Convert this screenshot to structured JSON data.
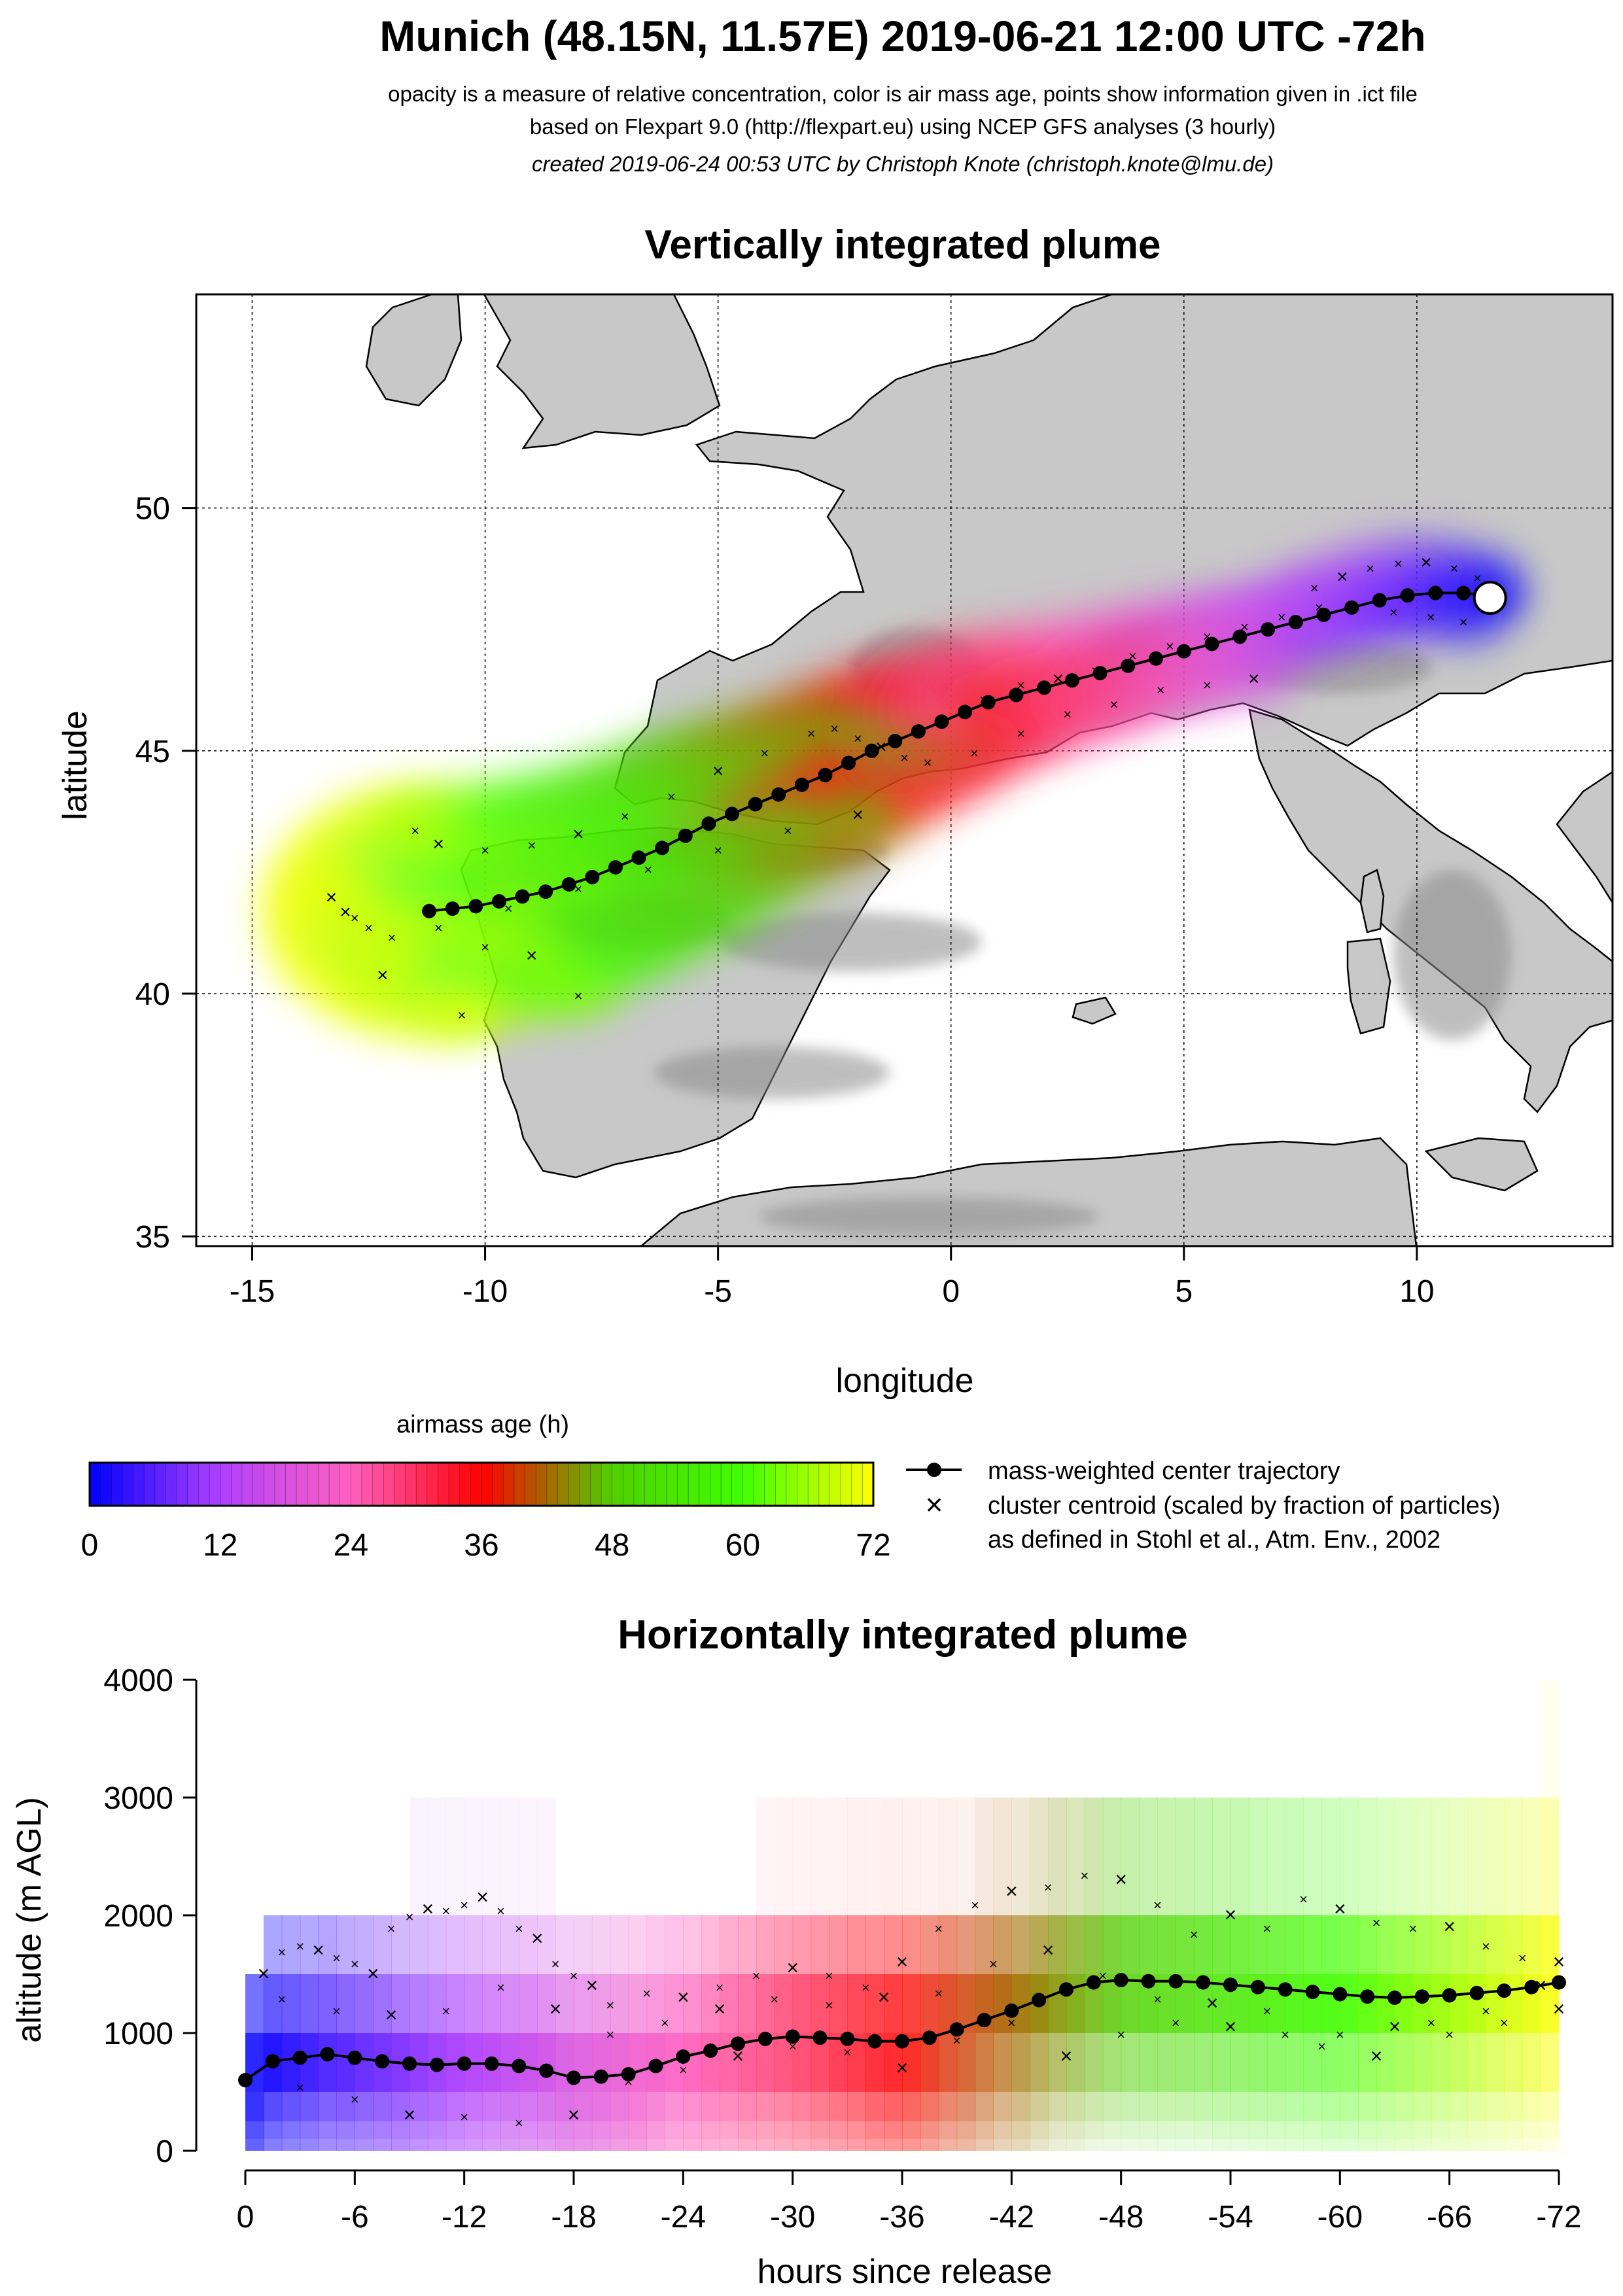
{
  "header": {
    "title": "Munich (48.15N, 11.57E) 2019-06-21 12:00 UTC -72h",
    "subtitle1": "opacity is a measure of relative concentration, color is air mass age, points show information given in .ict file",
    "subtitle2": "based on Flexpart 9.0 (http://flexpart.eu) using NCEP GFS analyses (3 hourly)",
    "credit": "created 2019-06-24 00:53 UTC by Christoph Knote (christoph.knote@lmu.de)"
  },
  "colors": {
    "age_stops": [
      {
        "age": 0,
        "color": "#0000ff"
      },
      {
        "age": 12,
        "color": "#b040ff"
      },
      {
        "age": 24,
        "color": "#ff60c0"
      },
      {
        "age": 36,
        "color": "#ff0000"
      },
      {
        "age": 48,
        "color": "#50d000"
      },
      {
        "age": 60,
        "color": "#40ff00"
      },
      {
        "age": 72,
        "color": "#ffff00"
      }
    ],
    "land": "#c8c8c8",
    "coast": "#000000",
    "grid": "#000000"
  },
  "chart_data": [
    {
      "type": "scatter",
      "title": "Vertically integrated plume",
      "xlabel": "longitude",
      "ylabel": "latitude",
      "xlim": [
        -16.2,
        14.2
      ],
      "ylim": [
        34.8,
        54.4
      ],
      "xticks": [
        -15,
        -10,
        -5,
        0,
        5,
        10
      ],
      "yticks": [
        35,
        40,
        45,
        50
      ],
      "grid": true,
      "release_point": {
        "lon": 11.57,
        "lat": 48.15
      },
      "center_trajectory": {
        "name": "mass-weighted center trajectory",
        "lon": [
          11.57,
          11.0,
          10.4,
          9.8,
          9.2,
          8.6,
          8.0,
          7.4,
          6.8,
          6.2,
          5.6,
          5.0,
          4.4,
          3.8,
          3.2,
          2.6,
          2.0,
          1.4,
          0.8,
          0.3,
          -0.2,
          -0.7,
          -1.2,
          -1.7,
          -2.2,
          -2.7,
          -3.2,
          -3.7,
          -4.2,
          -4.7,
          -5.2,
          -5.7,
          -6.2,
          -6.7,
          -7.2,
          -7.7,
          -8.2,
          -8.7,
          -9.2,
          -9.7,
          -10.2,
          -10.7,
          -11.2
        ],
        "lat": [
          48.2,
          48.25,
          48.25,
          48.2,
          48.1,
          47.95,
          47.8,
          47.65,
          47.5,
          47.35,
          47.2,
          47.05,
          46.9,
          46.75,
          46.6,
          46.45,
          46.3,
          46.15,
          46.0,
          45.8,
          45.6,
          45.4,
          45.2,
          45.0,
          44.75,
          44.5,
          44.3,
          44.1,
          43.9,
          43.7,
          43.5,
          43.25,
          43.0,
          42.8,
          42.6,
          42.4,
          42.25,
          42.1,
          42.0,
          41.9,
          41.8,
          41.75,
          41.7
        ],
        "age_h": [
          0,
          1.7,
          3.4,
          5.1,
          6.8,
          8.5,
          10.2,
          11.9,
          13.6,
          15.3,
          17.0,
          18.7,
          20.4,
          22.1,
          23.8,
          25.5,
          27.2,
          28.9,
          30.6,
          32.3,
          34.0,
          35.7,
          37.4,
          39.1,
          40.8,
          42.5,
          44.2,
          45.9,
          47.6,
          49.3,
          51.0,
          52.7,
          54.4,
          56.1,
          57.8,
          59.5,
          61.2,
          62.9,
          64.6,
          66.3,
          68.0,
          69.7,
          71.4
        ]
      },
      "cluster_centroids": {
        "name": "cluster centroid (scaled by fraction of particles)",
        "lon": [
          11.3,
          10.8,
          10.2,
          9.6,
          9.0,
          8.4,
          7.8,
          11.0,
          10.3,
          9.5,
          8.7,
          7.9,
          7.1,
          6.3,
          5.5,
          4.7,
          3.9,
          3.1,
          2.3,
          1.5,
          0.7,
          6.5,
          5.5,
          4.5,
          3.5,
          2.5,
          1.5,
          0.5,
          -0.5,
          -1.0,
          -1.5,
          -2.0,
          -2.5,
          -3.0,
          -4.0,
          -5.0,
          -6.0,
          -7.0,
          -8.0,
          -9.0,
          -10.0,
          -11.0,
          -11.5,
          -2.0,
          -3.5,
          -5.0,
          -6.5,
          -8.0,
          -9.5,
          -11.0,
          -12.0,
          -12.5,
          -13.0,
          -13.3,
          -12.8,
          -12.2,
          -8.0,
          -9.0,
          -10.0,
          -10.5
        ],
        "lat": [
          48.6,
          48.8,
          48.9,
          48.9,
          48.8,
          48.6,
          48.4,
          47.7,
          47.8,
          47.9,
          48.0,
          48.0,
          47.8,
          47.6,
          47.4,
          47.2,
          47.0,
          46.7,
          46.5,
          46.4,
          46.1,
          46.5,
          46.4,
          46.3,
          46.0,
          45.8,
          45.4,
          45.0,
          44.8,
          44.9,
          45.1,
          45.3,
          45.5,
          45.4,
          45.0,
          44.6,
          44.1,
          43.7,
          43.3,
          43.1,
          43.0,
          43.1,
          43.4,
          43.7,
          43.4,
          43.0,
          42.6,
          42.2,
          41.8,
          41.4,
          41.2,
          41.4,
          41.7,
          42.0,
          41.6,
          40.4,
          40.0,
          40.8,
          41.0,
          39.6
        ],
        "age_h": [
          2,
          4,
          6,
          8,
          10,
          12,
          14,
          2,
          4,
          7,
          10,
          13,
          16,
          19,
          22,
          25,
          28,
          31,
          33,
          35,
          37,
          18,
          22,
          26,
          29,
          32,
          35,
          38,
          41,
          43,
          45,
          47,
          49,
          50,
          52,
          54,
          56,
          58,
          60,
          62,
          64,
          66,
          68,
          48,
          52,
          55,
          58,
          62,
          65,
          68,
          70,
          71,
          72,
          72,
          70,
          69,
          64,
          66,
          68,
          70
        ]
      }
    },
    {
      "type": "heatmap",
      "title": "Horizontally integrated plume",
      "xlabel": "hours since release",
      "ylabel": "altitude (m AGL)",
      "xlim": [
        0,
        -72
      ],
      "ylim": [
        0,
        4000
      ],
      "xticks": [
        0,
        -6,
        -12,
        -18,
        -24,
        -30,
        -36,
        -42,
        -48,
        -54,
        -60,
        -66,
        -72
      ],
      "yticks": [
        0,
        1000,
        2000,
        3000,
        4000
      ],
      "center_trajectory": {
        "name": "mass-weighted center trajectory",
        "hours": [
          0,
          -1.5,
          -3,
          -4.5,
          -6,
          -7.5,
          -9,
          -10.5,
          -12,
          -13.5,
          -15,
          -16.5,
          -18,
          -19.5,
          -21,
          -22.5,
          -24,
          -25.5,
          -27,
          -28.5,
          -30,
          -31.5,
          -33,
          -34.5,
          -36,
          -37.5,
          -39,
          -40.5,
          -42,
          -43.5,
          -45,
          -46.5,
          -48,
          -49.5,
          -51,
          -52.5,
          -54,
          -55.5,
          -57,
          -58.5,
          -60,
          -61.5,
          -63,
          -64.5,
          -66,
          -67.5,
          -69,
          -70.5,
          -72
        ],
        "altitude_m": [
          600,
          760,
          790,
          820,
          790,
          760,
          740,
          730,
          740,
          740,
          720,
          680,
          620,
          630,
          650,
          720,
          800,
          850,
          910,
          950,
          970,
          960,
          950,
          930,
          930,
          960,
          1030,
          1110,
          1190,
          1280,
          1370,
          1430,
          1450,
          1440,
          1440,
          1430,
          1410,
          1390,
          1370,
          1350,
          1330,
          1310,
          1300,
          1310,
          1320,
          1340,
          1360,
          1390,
          1430
        ]
      },
      "cluster_centroids": {
        "name": "cluster centroid (scaled by fraction of particles)",
        "hours": [
          -1,
          -2,
          -3,
          -4,
          -5,
          -6,
          -7,
          -8,
          -9,
          -10,
          -11,
          -12,
          -13,
          -14,
          -15,
          -16,
          -17,
          -18,
          -19,
          -20,
          -22,
          -24,
          -26,
          -28,
          -30,
          -32,
          -34,
          -36,
          -38,
          -40,
          -42,
          -44,
          -46,
          -48,
          -50,
          -52,
          -54,
          -56,
          -58,
          -60,
          -62,
          -64,
          -66,
          -68,
          -70,
          -72,
          -3,
          -6,
          -9,
          -12,
          -15,
          -18,
          -21,
          -24,
          -27,
          -30,
          -33,
          -36,
          -39,
          -42,
          -45,
          -48,
          -51,
          -54,
          -57,
          -60,
          -63,
          -66,
          -69,
          -72,
          -2,
          -5,
          -8,
          -11,
          -14,
          -17,
          -20,
          -23,
          -26,
          -29,
          -32,
          -35,
          -38,
          -41,
          -44,
          -47,
          -50,
          -53,
          -56,
          -59,
          -62,
          -65,
          -68,
          -71
        ],
        "altitude_m": [
          1500,
          1700,
          1750,
          1700,
          1650,
          1600,
          1500,
          1900,
          2000,
          2050,
          2050,
          2100,
          2150,
          2050,
          1900,
          1800,
          1600,
          1500,
          1400,
          1250,
          1350,
          1300,
          1400,
          1500,
          1550,
          1500,
          1400,
          1600,
          1900,
          2100,
          2200,
          2250,
          2350,
          2300,
          2100,
          1850,
          2000,
          1900,
          2150,
          2050,
          1950,
          1900,
          1900,
          1750,
          1650,
          1600,
          550,
          450,
          300,
          300,
          250,
          300,
          600,
          700,
          800,
          900,
          850,
          700,
          950,
          1100,
          800,
          1000,
          1100,
          1050,
          1000,
          1000,
          1050,
          1000,
          1100,
          1200,
          1300,
          1200,
          1150,
          1200,
          1400,
          1200,
          1000,
          1100,
          1200,
          1300,
          1250,
          1300,
          1350,
          1600,
          1700,
          1500,
          1300,
          1250,
          1200,
          900,
          800,
          1100,
          1200,
          1400
        ]
      }
    }
  ],
  "colorbar": {
    "title": "airmass age (h)",
    "ticks": [
      "0",
      "12",
      "24",
      "36",
      "48",
      "60",
      "72"
    ]
  },
  "legend": {
    "center_label": "mass-weighted center trajectory",
    "cluster_label": "cluster centroid (scaled by fraction of particles)",
    "cluster_label2": "as defined in Stohl et al., Atm. Env., 2002"
  }
}
